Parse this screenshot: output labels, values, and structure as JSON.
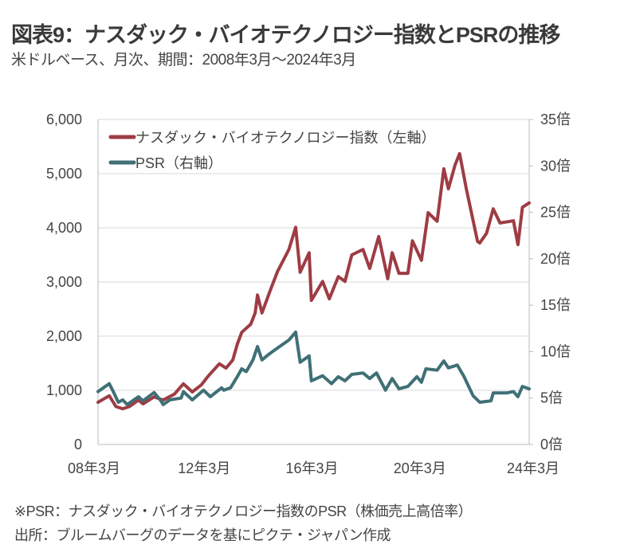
{
  "title": "図表9：ナスダック・バイオテクノロジー指数とPSRの推移",
  "subtitle": "米ドルベース、月次、期間：2008年3月～2024年3月",
  "notes": [
    "※PSR：ナスダック・バイオテクノロジー指数のPSR（株価売上高倍率）",
    "出所：ブルームバーグのデータを基にピクテ・ジャパン作成"
  ],
  "colors": {
    "index": "#9e3c44",
    "psr": "#3f7076",
    "grid": "#d9d9d9"
  },
  "chart_data": {
    "type": "line",
    "xlim": [
      "2008-03",
      "2024-03"
    ],
    "x_ticks": [
      {
        "date": "2008-03",
        "label": "08年3月"
      },
      {
        "date": "2012-03",
        "label": "12年3月"
      },
      {
        "date": "2016-03",
        "label": "16年3月"
      },
      {
        "date": "2020-03",
        "label": "20年3月"
      },
      {
        "date": "2024-03",
        "label": "24年3月"
      }
    ],
    "y_left": {
      "ylim": [
        0,
        6000
      ],
      "ticks": [
        0,
        1000,
        2000,
        3000,
        4000,
        5000,
        6000
      ],
      "tick_labels": [
        "0",
        "1,000",
        "2,000",
        "3,000",
        "4,000",
        "5,000",
        "6,000"
      ]
    },
    "y_right": {
      "ylim": [
        0,
        35
      ],
      "ticks": [
        0,
        5,
        10,
        15,
        20,
        25,
        30,
        35
      ],
      "tick_labels": [
        "0倍",
        "5倍",
        "10倍",
        "15倍",
        "20倍",
        "25倍",
        "30倍",
        "35倍"
      ]
    },
    "grid": true,
    "legend_position": "top-left",
    "series": [
      {
        "name": "ナスダック・バイオテクノロジー指数（左軸）",
        "axis": "left",
        "points": [
          [
            "2008-03",
            780
          ],
          [
            "2008-08",
            900
          ],
          [
            "2008-11",
            700
          ],
          [
            "2009-02",
            660
          ],
          [
            "2009-05",
            700
          ],
          [
            "2009-09",
            820
          ],
          [
            "2009-11",
            750
          ],
          [
            "2010-04",
            880
          ],
          [
            "2010-08",
            820
          ],
          [
            "2011-01",
            930
          ],
          [
            "2011-05",
            1120
          ],
          [
            "2011-09",
            970
          ],
          [
            "2012-01",
            1100
          ],
          [
            "2012-04",
            1260
          ],
          [
            "2012-09",
            1490
          ],
          [
            "2012-12",
            1410
          ],
          [
            "2013-03",
            1560
          ],
          [
            "2013-05",
            1850
          ],
          [
            "2013-07",
            2070
          ],
          [
            "2013-11",
            2220
          ],
          [
            "2014-01",
            2430
          ],
          [
            "2014-02",
            2760
          ],
          [
            "2014-04",
            2430
          ],
          [
            "2014-08",
            2880
          ],
          [
            "2014-11",
            3200
          ],
          [
            "2015-04",
            3600
          ],
          [
            "2015-07",
            4010
          ],
          [
            "2015-09",
            3180
          ],
          [
            "2016-01",
            3540
          ],
          [
            "2016-02",
            2660
          ],
          [
            "2016-07",
            3010
          ],
          [
            "2016-10",
            2690
          ],
          [
            "2017-02",
            3100
          ],
          [
            "2017-05",
            3010
          ],
          [
            "2017-08",
            3500
          ],
          [
            "2018-01",
            3600
          ],
          [
            "2018-04",
            3250
          ],
          [
            "2018-08",
            3840
          ],
          [
            "2018-12",
            3060
          ],
          [
            "2019-02",
            3540
          ],
          [
            "2019-05",
            3160
          ],
          [
            "2019-09",
            3160
          ],
          [
            "2019-11",
            3760
          ],
          [
            "2020-03",
            3400
          ],
          [
            "2020-06",
            4280
          ],
          [
            "2020-10",
            4120
          ],
          [
            "2021-01",
            5090
          ],
          [
            "2021-03",
            4720
          ],
          [
            "2021-06",
            5160
          ],
          [
            "2021-08",
            5370
          ],
          [
            "2021-11",
            4720
          ],
          [
            "2022-04",
            3750
          ],
          [
            "2022-05",
            3720
          ],
          [
            "2022-08",
            3900
          ],
          [
            "2022-11",
            4350
          ],
          [
            "2023-02",
            4090
          ],
          [
            "2023-08",
            4130
          ],
          [
            "2023-10",
            3690
          ],
          [
            "2023-12",
            4380
          ],
          [
            "2024-03",
            4460
          ]
        ]
      },
      {
        "name": "PSR（右軸）",
        "axis": "right",
        "points": [
          [
            "2008-03",
            5.7
          ],
          [
            "2008-08",
            6.55
          ],
          [
            "2008-10",
            5.6
          ],
          [
            "2008-12",
            4.55
          ],
          [
            "2009-02",
            4.8
          ],
          [
            "2009-04",
            4.3
          ],
          [
            "2009-09",
            5.15
          ],
          [
            "2009-11",
            4.7
          ],
          [
            "2010-04",
            5.6
          ],
          [
            "2010-07",
            4.7
          ],
          [
            "2010-08",
            4.3
          ],
          [
            "2010-11",
            4.8
          ],
          [
            "2011-04",
            5.0
          ],
          [
            "2011-05",
            5.7
          ],
          [
            "2011-09",
            4.8
          ],
          [
            "2012-02",
            5.85
          ],
          [
            "2012-05",
            5.15
          ],
          [
            "2012-10",
            6.1
          ],
          [
            "2012-11",
            5.85
          ],
          [
            "2013-02",
            6.1
          ],
          [
            "2013-05",
            7.3
          ],
          [
            "2013-07",
            8.15
          ],
          [
            "2013-09",
            7.85
          ],
          [
            "2013-12",
            9.1
          ],
          [
            "2014-02",
            10.55
          ],
          [
            "2014-04",
            9.1
          ],
          [
            "2014-07",
            9.7
          ],
          [
            "2014-11",
            10.4
          ],
          [
            "2015-04",
            11.25
          ],
          [
            "2015-07",
            12.1
          ],
          [
            "2015-09",
            8.85
          ],
          [
            "2016-01",
            9.55
          ],
          [
            "2016-02",
            6.85
          ],
          [
            "2016-07",
            7.4
          ],
          [
            "2016-11",
            6.55
          ],
          [
            "2017-02",
            7.3
          ],
          [
            "2017-05",
            6.85
          ],
          [
            "2017-08",
            7.55
          ],
          [
            "2018-01",
            7.7
          ],
          [
            "2018-04",
            7.1
          ],
          [
            "2018-07",
            7.7
          ],
          [
            "2018-11",
            5.85
          ],
          [
            "2019-02",
            7.1
          ],
          [
            "2019-05",
            6.0
          ],
          [
            "2019-09",
            6.25
          ],
          [
            "2020-01",
            7.3
          ],
          [
            "2020-03",
            6.7
          ],
          [
            "2020-05",
            8.15
          ],
          [
            "2020-10",
            8.0
          ],
          [
            "2021-01",
            9.0
          ],
          [
            "2021-03",
            8.25
          ],
          [
            "2021-07",
            8.55
          ],
          [
            "2021-10",
            7.3
          ],
          [
            "2022-02",
            5.25
          ],
          [
            "2022-05",
            4.55
          ],
          [
            "2022-10",
            4.7
          ],
          [
            "2022-11",
            5.55
          ],
          [
            "2023-05",
            5.55
          ],
          [
            "2023-08",
            5.7
          ],
          [
            "2023-10",
            5.15
          ],
          [
            "2023-12",
            6.25
          ],
          [
            "2024-03",
            6.0
          ]
        ]
      }
    ]
  }
}
